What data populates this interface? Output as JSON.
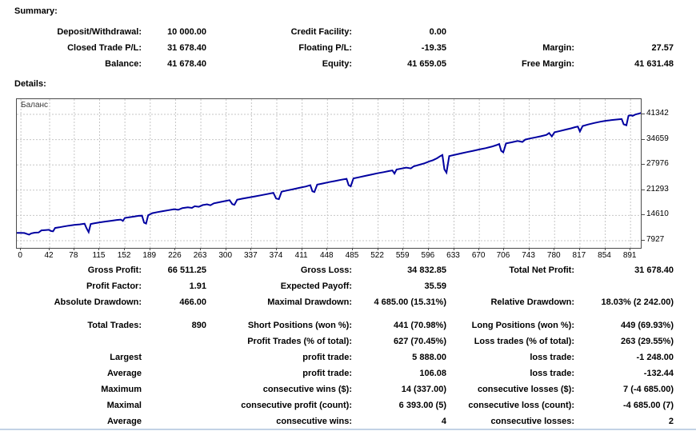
{
  "summary": {
    "heading": "Summary:",
    "rows": [
      [
        "Deposit/Withdrawal:",
        "10 000.00",
        "Credit Facility:",
        "0.00",
        "",
        ""
      ],
      [
        "Closed Trade P/L:",
        "31 678.40",
        "Floating P/L:",
        "-19.35",
        "Margin:",
        "27.57"
      ],
      [
        "Balance:",
        "41 678.40",
        "Equity:",
        "41 659.05",
        "Free Margin:",
        "41 631.48"
      ]
    ]
  },
  "details": {
    "heading": "Details:"
  },
  "stats": {
    "rows": [
      [
        "Gross Profit:",
        "66 511.25",
        "Gross Loss:",
        "34 832.85",
        "Total Net Profit:",
        "31 678.40"
      ],
      [
        "Profit Factor:",
        "1.91",
        "Expected Payoff:",
        "35.59",
        "",
        ""
      ],
      [
        "Absolute Drawdown:",
        "466.00",
        "Maximal Drawdown:",
        "4 685.00 (15.31%)",
        "Relative Drawdown:",
        "18.03% (2 242.00)"
      ]
    ]
  },
  "trades": {
    "rows": [
      [
        "Total Trades:",
        "890",
        "Short Positions (won %):",
        "441 (70.98%)",
        "Long Positions (won %):",
        "449 (69.93%)"
      ],
      [
        "",
        "",
        "Profit Trades (% of total):",
        "627 (70.45%)",
        "Loss trades (% of total):",
        "263 (29.55%)"
      ],
      [
        "Largest",
        "",
        "profit trade:",
        "5 888.00",
        "loss trade:",
        "-1 248.00"
      ],
      [
        "Average",
        "",
        "profit trade:",
        "106.08",
        "loss trade:",
        "-132.44"
      ],
      [
        "Maximum",
        "",
        "consecutive wins ($):",
        "14 (337.00)",
        "consecutive losses ($):",
        "7 (-4 685.00)"
      ],
      [
        "Maximal",
        "",
        "consecutive profit (count):",
        "6 393.00 (5)",
        "consecutive loss (count):",
        "-4 685.00 (7)"
      ],
      [
        "Average",
        "",
        "consecutive wins:",
        "4",
        "consecutive losses:",
        "2"
      ]
    ]
  },
  "chart_data": {
    "type": "line",
    "title": "Баланс",
    "series_name": "Balance",
    "line_color": "#0000a0",
    "grid_color": "#c6c6c6",
    "grid": "dashed",
    "legend_position": "top-left-inside",
    "xlim": [
      -6,
      906
    ],
    "ylim": [
      6024,
      45360
    ],
    "x_ticks": [
      0,
      42,
      78,
      115,
      152,
      189,
      226,
      263,
      300,
      337,
      374,
      411,
      448,
      485,
      522,
      559,
      596,
      633,
      670,
      706,
      743,
      780,
      817,
      854,
      891
    ],
    "y_ticks": [
      7927,
      14610,
      21293,
      27976,
      34659,
      41342
    ],
    "points": [
      [
        -6,
        10000
      ],
      [
        0,
        10000
      ],
      [
        5,
        9950
      ],
      [
        9,
        9700
      ],
      [
        12,
        9534
      ],
      [
        15,
        9850
      ],
      [
        20,
        10050
      ],
      [
        26,
        10100
      ],
      [
        30,
        10650
      ],
      [
        36,
        10750
      ],
      [
        41,
        10800
      ],
      [
        44,
        10480
      ],
      [
        47,
        10400
      ],
      [
        50,
        11300
      ],
      [
        56,
        11450
      ],
      [
        63,
        11700
      ],
      [
        70,
        11900
      ],
      [
        78,
        12100
      ],
      [
        86,
        12250
      ],
      [
        93,
        12434
      ],
      [
        96,
        11200
      ],
      [
        99,
        10192
      ],
      [
        102,
        12350
      ],
      [
        108,
        12550
      ],
      [
        116,
        12800
      ],
      [
        124,
        13000
      ],
      [
        132,
        13200
      ],
      [
        140,
        13400
      ],
      [
        146,
        13500
      ],
      [
        149,
        13150
      ],
      [
        152,
        13950
      ],
      [
        158,
        14100
      ],
      [
        165,
        14300
      ],
      [
        172,
        14500
      ],
      [
        177,
        14550
      ],
      [
        180,
        12700
      ],
      [
        183,
        12450
      ],
      [
        186,
        14650
      ],
      [
        192,
        15200
      ],
      [
        200,
        15500
      ],
      [
        208,
        15750
      ],
      [
        216,
        16000
      ],
      [
        224,
        16250
      ],
      [
        230,
        16100
      ],
      [
        236,
        16550
      ],
      [
        244,
        16750
      ],
      [
        250,
        16600
      ],
      [
        254,
        17050
      ],
      [
        260,
        16900
      ],
      [
        266,
        17350
      ],
      [
        272,
        17550
      ],
      [
        277,
        17300
      ],
      [
        282,
        17800
      ],
      [
        290,
        18100
      ],
      [
        298,
        18400
      ],
      [
        305,
        18650
      ],
      [
        309,
        17600
      ],
      [
        312,
        17400
      ],
      [
        316,
        18750
      ],
      [
        324,
        19050
      ],
      [
        333,
        19350
      ],
      [
        342,
        19650
      ],
      [
        351,
        19950
      ],
      [
        360,
        20250
      ],
      [
        369,
        20600
      ],
      [
        373,
        19100
      ],
      [
        377,
        18900
      ],
      [
        381,
        20900
      ],
      [
        389,
        21200
      ],
      [
        398,
        21550
      ],
      [
        407,
        21900
      ],
      [
        416,
        22250
      ],
      [
        423,
        22600
      ],
      [
        426,
        21000
      ],
      [
        429,
        20800
      ],
      [
        433,
        22750
      ],
      [
        441,
        23050
      ],
      [
        450,
        23400
      ],
      [
        459,
        23700
      ],
      [
        468,
        24050
      ],
      [
        476,
        24300
      ],
      [
        479,
        22600
      ],
      [
        482,
        22300
      ],
      [
        486,
        24400
      ],
      [
        494,
        24700
      ],
      [
        503,
        25050
      ],
      [
        512,
        25400
      ],
      [
        521,
        25750
      ],
      [
        530,
        26050
      ],
      [
        538,
        26350
      ],
      [
        543,
        26500
      ],
      [
        546,
        25700
      ],
      [
        549,
        26750
      ],
      [
        556,
        27000
      ],
      [
        563,
        27250
      ],
      [
        570,
        27050
      ],
      [
        574,
        27600
      ],
      [
        582,
        28000
      ],
      [
        590,
        28400
      ],
      [
        597,
        28900
      ],
      [
        602,
        29200
      ],
      [
        608,
        29700
      ],
      [
        613,
        30300
      ],
      [
        616,
        30600
      ],
      [
        619,
        26800
      ],
      [
        622,
        25915
      ],
      [
        626,
        30300
      ],
      [
        634,
        30650
      ],
      [
        643,
        31000
      ],
      [
        652,
        31350
      ],
      [
        661,
        31700
      ],
      [
        670,
        32050
      ],
      [
        679,
        32400
      ],
      [
        688,
        32800
      ],
      [
        695,
        33200
      ],
      [
        699,
        33500
      ],
      [
        702,
        31700
      ],
      [
        705,
        31300
      ],
      [
        709,
        33650
      ],
      [
        717,
        33950
      ],
      [
        726,
        34300
      ],
      [
        733,
        34050
      ],
      [
        737,
        34650
      ],
      [
        744,
        34950
      ],
      [
        752,
        35250
      ],
      [
        760,
        35550
      ],
      [
        768,
        35900
      ],
      [
        772,
        36400
      ],
      [
        776,
        35500
      ],
      [
        780,
        36600
      ],
      [
        788,
        36950
      ],
      [
        796,
        37300
      ],
      [
        804,
        37650
      ],
      [
        810,
        37950
      ],
      [
        814,
        38100
      ],
      [
        817,
        36800
      ],
      [
        821,
        38250
      ],
      [
        829,
        38650
      ],
      [
        838,
        39050
      ],
      [
        847,
        39400
      ],
      [
        855,
        39650
      ],
      [
        862,
        39800
      ],
      [
        869,
        39950
      ],
      [
        875,
        40050
      ],
      [
        878,
        40100
      ],
      [
        881,
        38700
      ],
      [
        885,
        38450
      ],
      [
        888,
        40950
      ],
      [
        891,
        41100
      ],
      [
        894,
        40950
      ],
      [
        898,
        41300
      ],
      [
        902,
        41480
      ],
      [
        906,
        41678
      ]
    ]
  }
}
